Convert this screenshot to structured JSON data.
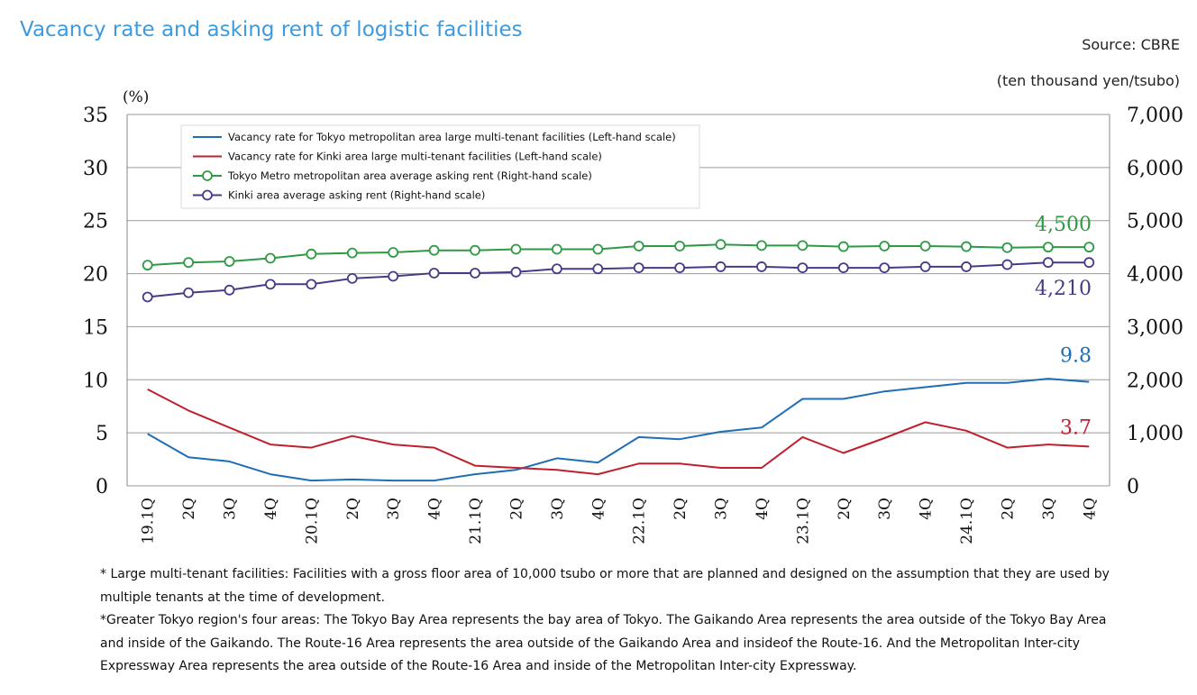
{
  "header": {
    "title": "Vacancy rate and asking rent of logistic facilities",
    "source": "Source: CBRE",
    "unit_right": "(ten thousand yen/tsubo)",
    "unit_left": "(%)"
  },
  "chart_data": {
    "type": "line",
    "categories": [
      "19.1Q",
      "2Q",
      "3Q",
      "4Q",
      "20.1Q",
      "2Q",
      "3Q",
      "4Q",
      "21.1Q",
      "2Q",
      "3Q",
      "4Q",
      "22.1Q",
      "2Q",
      "3Q",
      "4Q",
      "23.1Q",
      "2Q",
      "3Q",
      "4Q",
      "24.1Q",
      "2Q",
      "3Q",
      "4Q"
    ],
    "ylabel_left": "(%)",
    "ylabel_right": "(ten thousand yen/tsubo)",
    "ylim_left": [
      0,
      35
    ],
    "ylim_right": [
      0,
      7000
    ],
    "yticks_left": [
      "0",
      "5",
      "10",
      "15",
      "20",
      "25",
      "30",
      "35"
    ],
    "yticks_right": [
      "0",
      "1,000",
      "2,000",
      "3,000",
      "4,000",
      "5,000",
      "6,000",
      "7,000"
    ],
    "grid": true,
    "legend_position": "top-left",
    "series": [
      {
        "name": "Vacancy rate for Tokyo metropolitan area large multi-tenant facilities (Left-hand scale)",
        "axis": "left",
        "color": "#1f6eb5",
        "marker": "none",
        "values": [
          4.9,
          2.7,
          2.3,
          1.1,
          0.5,
          0.6,
          0.5,
          0.5,
          1.1,
          1.5,
          2.6,
          2.2,
          4.6,
          4.4,
          5.1,
          5.5,
          8.2,
          8.2,
          8.9,
          9.3,
          9.7,
          9.7,
          10.1,
          9.8
        ],
        "end_label": "9.8"
      },
      {
        "name": "Vacancy rate for Kinki area large multi-tenant facilities (Left-hand scale)",
        "axis": "left",
        "color": "#c0202e",
        "marker": "none",
        "values": [
          9.1,
          7.1,
          5.5,
          3.9,
          3.6,
          4.7,
          3.9,
          3.6,
          1.9,
          1.7,
          1.5,
          1.1,
          2.1,
          2.1,
          1.7,
          1.7,
          4.6,
          3.1,
          4.5,
          6.0,
          5.2,
          3.6,
          3.9,
          3.7
        ],
        "end_label": "3.7"
      },
      {
        "name": "Tokyo Metro metropolitan area average asking rent (Right-hand scale)",
        "axis": "right",
        "color": "#2e9a44",
        "marker": "circle",
        "values": [
          4160,
          4210,
          4230,
          4290,
          4370,
          4390,
          4400,
          4440,
          4440,
          4460,
          4460,
          4460,
          4520,
          4520,
          4550,
          4530,
          4530,
          4510,
          4520,
          4520,
          4510,
          4490,
          4500,
          4500
        ],
        "end_label": "4,500"
      },
      {
        "name": "Kinki area average asking rent (Right-hand scale)",
        "axis": "right",
        "color": "#4a3a86",
        "marker": "circle",
        "values": [
          3560,
          3640,
          3690,
          3800,
          3800,
          3910,
          3950,
          4010,
          4010,
          4030,
          4090,
          4090,
          4110,
          4110,
          4130,
          4130,
          4110,
          4110,
          4110,
          4130,
          4130,
          4170,
          4210,
          4210
        ],
        "end_label": "4,210"
      }
    ]
  },
  "notes": [
    "* Large multi-tenant facilities: Facilities with a gross floor area of 10,000 tsubo or more that are planned and designed on the assumption that they are used by multiple tenants at the time of development.",
    "*Greater Tokyo region's four areas: The Tokyo Bay Area represents the bay area of Tokyo. The Gaikando Area represents the area outside of the Tokyo Bay Area and inside of the Gaikando. The Route-16 Area represents the area outside of the Gaikando Area and insideof the Route-16. And the Metropolitan Inter-city Expressway Area represents the area outside of the Route-16 Area and inside of the Metropolitan Inter-city Expressway."
  ]
}
